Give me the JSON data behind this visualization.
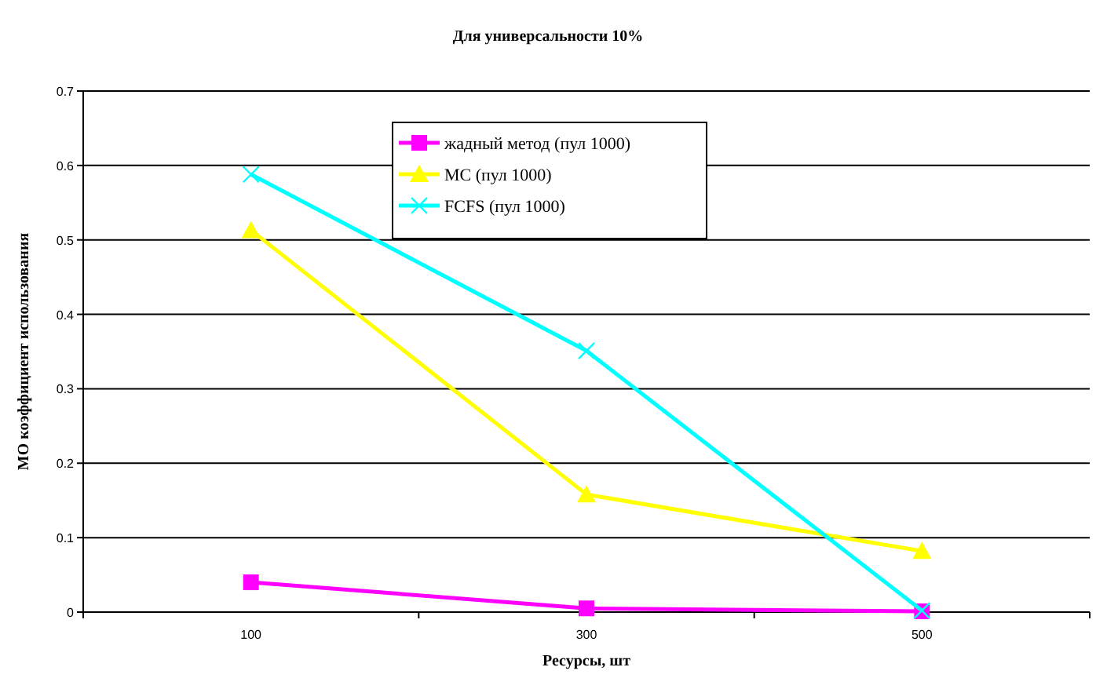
{
  "chart_data": {
    "type": "line",
    "title": "Для универсальности 10%",
    "xlabel": "Ресурсы, шт",
    "ylabel": "МО коэффициент использования",
    "categories": [
      "100",
      "300",
      "500"
    ],
    "series": [
      {
        "name": "жадный метод (пул 1000)",
        "color": "#ff00ff",
        "marker": "square",
        "values": [
          0.04,
          0.005,
          0.001
        ]
      },
      {
        "name": "МС (пул 1000)",
        "color": "#ffff00",
        "marker": "triangle",
        "values": [
          0.513,
          0.158,
          0.082
        ]
      },
      {
        "name": "FCFS (пул 1000)",
        "color": "#00ffff",
        "marker": "cross",
        "values": [
          0.588,
          0.351,
          0.002
        ]
      }
    ],
    "ylim": [
      0,
      0.7
    ],
    "yticks": [
      0,
      0.1,
      0.2,
      0.3,
      0.4,
      0.5,
      0.6,
      0.7
    ],
    "grid": "y",
    "legend": "top"
  }
}
